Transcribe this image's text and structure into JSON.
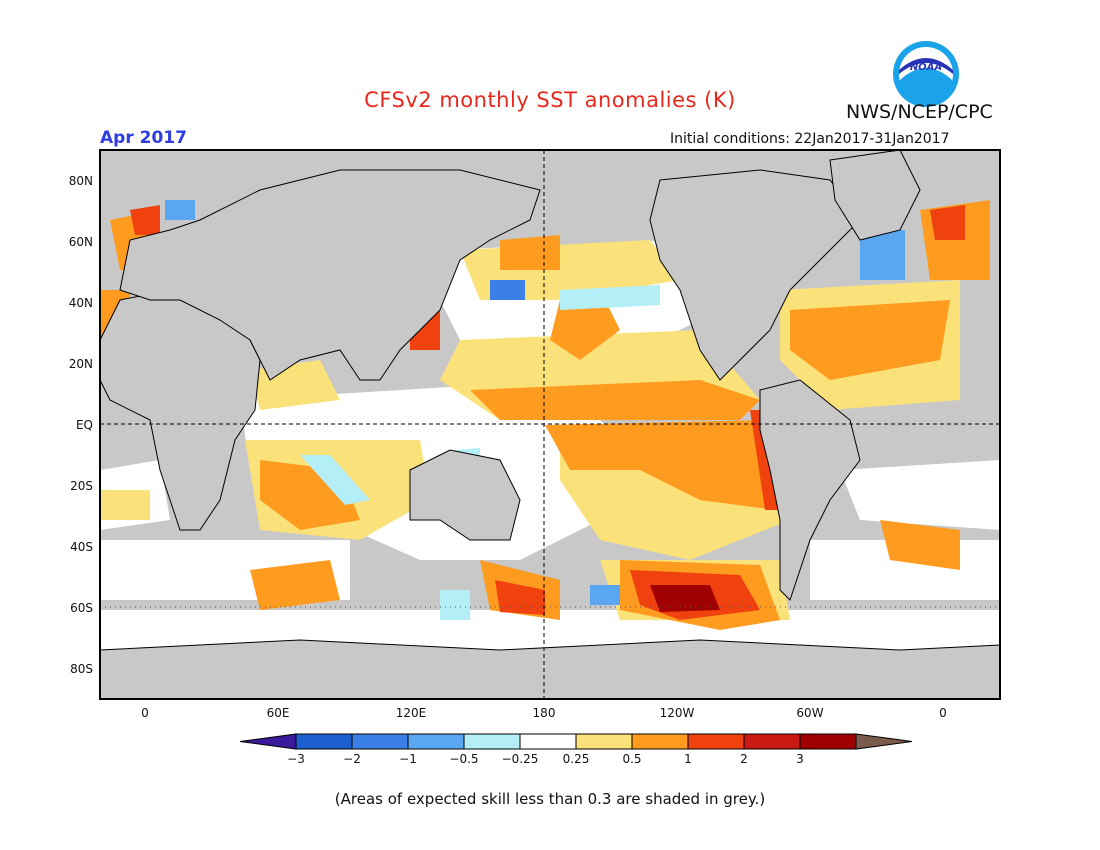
{
  "title": "CFSv2 monthly SST anomalies (K)",
  "agency": "NWS/NCEP/CPC",
  "logo_text": "NOAA",
  "valid_month": "Apr 2017",
  "initial_conditions": "Initial conditions: 22Jan2017-31Jan2017",
  "caption": "(Areas of expected skill less than 0.3 are shaded in grey.)",
  "map": {
    "projection": "cylindrical equidistant",
    "lat_ticks": [
      "80N",
      "60N",
      "40N",
      "20N",
      "EQ",
      "20S",
      "40S",
      "60S",
      "80S"
    ],
    "lon_ticks": [
      "0",
      "60E",
      "120E",
      "180",
      "120W",
      "60W",
      "0"
    ],
    "colors": {
      "land": "#ffffff",
      "low_skill": "#c8c8c8",
      "coast": "#000000"
    }
  },
  "colorbar": {
    "labels": [
      "−3",
      "−2",
      "−1",
      "−0.5",
      "−0.25",
      "0.25",
      "0.5",
      "1",
      "2",
      "3"
    ],
    "colors": [
      "#3a1a9a",
      "#1d5fce",
      "#3a80e6",
      "#5aa6f0",
      "#b4eef6",
      "#ffffff",
      "#fbe17a",
      "#ff9b1e",
      "#f0420e",
      "#c81a12",
      "#a00000",
      "#7a5a4a"
    ]
  }
}
